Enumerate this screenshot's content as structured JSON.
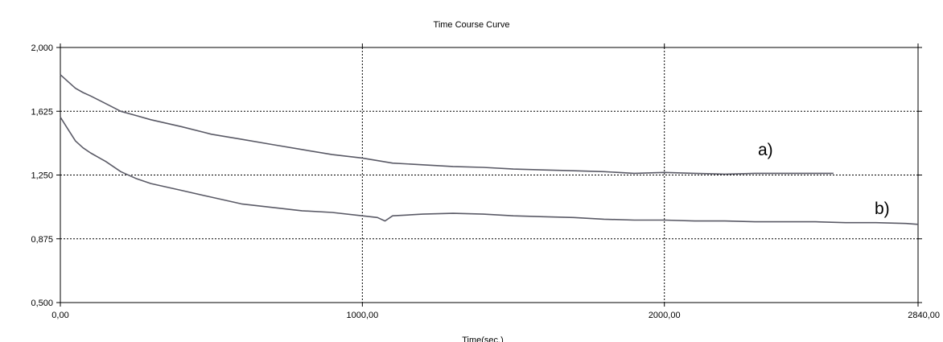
{
  "chart_data": {
    "type": "line",
    "title": "Time Course Curve",
    "xlabel": "Time(sec.)",
    "ylabel": "",
    "xlim": [
      0,
      2840
    ],
    "ylim": [
      0.5,
      2.0
    ],
    "x_ticks": [
      0,
      1000,
      2000,
      2840
    ],
    "x_tick_labels": [
      "0,00",
      "1000,00",
      "2000,00",
      "2840,00"
    ],
    "y_ticks": [
      0.5,
      0.875,
      1.25,
      1.625,
      2.0
    ],
    "y_tick_labels": [
      "0,500",
      "0,875",
      "1,250",
      "1,625",
      "2,000"
    ],
    "grid": true,
    "series": [
      {
        "name": "a)",
        "color": "#5a5a66",
        "x": [
          0,
          25,
          50,
          75,
          100,
          150,
          200,
          250,
          300,
          400,
          500,
          600,
          700,
          800,
          900,
          1000,
          1100,
          1200,
          1300,
          1400,
          1500,
          1600,
          1700,
          1800,
          1900,
          2000,
          2100,
          2200,
          2300,
          2400,
          2500,
          2560
        ],
        "y": [
          1.84,
          1.8,
          1.76,
          1.735,
          1.715,
          1.67,
          1.625,
          1.6,
          1.575,
          1.535,
          1.49,
          1.46,
          1.43,
          1.4,
          1.37,
          1.35,
          1.32,
          1.31,
          1.3,
          1.295,
          1.285,
          1.28,
          1.275,
          1.27,
          1.26,
          1.265,
          1.26,
          1.255,
          1.26,
          1.26,
          1.26,
          1.26
        ]
      },
      {
        "name": "b)",
        "color": "#5a5a66",
        "x": [
          0,
          25,
          50,
          75,
          100,
          150,
          200,
          250,
          300,
          400,
          500,
          600,
          700,
          800,
          900,
          1000,
          1050,
          1075,
          1100,
          1200,
          1300,
          1400,
          1500,
          1600,
          1700,
          1800,
          1900,
          2000,
          2100,
          2200,
          2300,
          2400,
          2500,
          2600,
          2700,
          2800,
          2840
        ],
        "y": [
          1.59,
          1.52,
          1.45,
          1.41,
          1.38,
          1.33,
          1.27,
          1.23,
          1.2,
          1.16,
          1.12,
          1.08,
          1.06,
          1.04,
          1.03,
          1.01,
          1.0,
          0.98,
          1.01,
          1.02,
          1.025,
          1.02,
          1.01,
          1.005,
          1.0,
          0.99,
          0.985,
          0.985,
          0.98,
          0.98,
          0.975,
          0.975,
          0.975,
          0.97,
          0.97,
          0.965,
          0.96
        ]
      }
    ]
  }
}
